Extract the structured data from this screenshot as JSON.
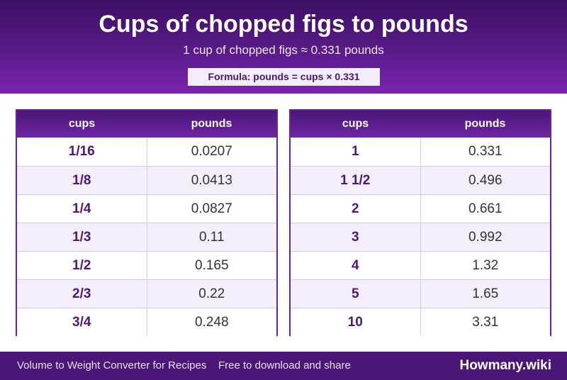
{
  "header": {
    "title": "Cups of chopped figs to pounds",
    "subtitle": "1 cup of chopped figs ≈ 0.331 pounds",
    "formula": "Formula: pounds = cups × 0.331"
  },
  "tables": [
    {
      "col_cups": "cups",
      "col_pounds": "pounds",
      "rows": [
        {
          "cups": "1/16",
          "pounds": "0.0207"
        },
        {
          "cups": "1/8",
          "pounds": "0.0413"
        },
        {
          "cups": "1/4",
          "pounds": "0.0827"
        },
        {
          "cups": "1/3",
          "pounds": "0.11"
        },
        {
          "cups": "1/2",
          "pounds": "0.165"
        },
        {
          "cups": "2/3",
          "pounds": "0.22"
        },
        {
          "cups": "3/4",
          "pounds": "0.248"
        }
      ]
    },
    {
      "col_cups": "cups",
      "col_pounds": "pounds",
      "rows": [
        {
          "cups": "1",
          "pounds": "0.331"
        },
        {
          "cups": "1 1/2",
          "pounds": "0.496"
        },
        {
          "cups": "2",
          "pounds": "0.661"
        },
        {
          "cups": "3",
          "pounds": "0.992"
        },
        {
          "cups": "4",
          "pounds": "1.32"
        },
        {
          "cups": "5",
          "pounds": "1.65"
        },
        {
          "cups": "10",
          "pounds": "3.31"
        }
      ]
    }
  ],
  "footer": {
    "left_text": "Volume to Weight Converter for Recipes",
    "mid_text": "Free to download and share",
    "brand": "Howmany.wiki"
  }
}
